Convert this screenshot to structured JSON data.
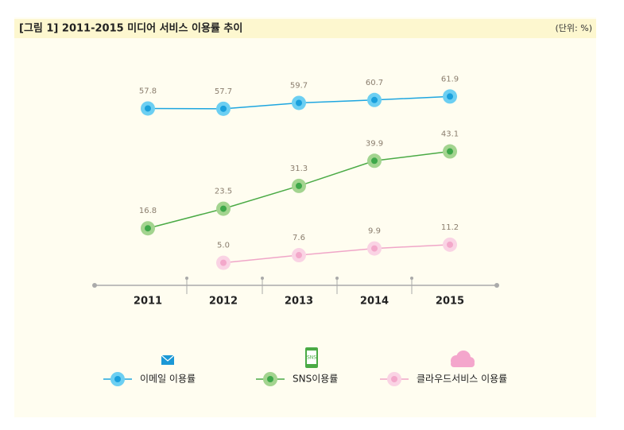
{
  "chart_data": {
    "type": "line",
    "title": "[그림 1] 2011-2015 미디어 서비스 이용률 추이",
    "unit": "(단위: %)",
    "categories": [
      "2011",
      "2012",
      "2013",
      "2014",
      "2015"
    ],
    "ylim": [
      0,
      65
    ],
    "series": [
      {
        "name": "이메일 이용률",
        "color": "#1ea6e0",
        "values": [
          57.8,
          57.7,
          59.7,
          60.7,
          61.9
        ]
      },
      {
        "name": "SNS이용률",
        "color": "#4aaa45",
        "values": [
          16.8,
          23.5,
          31.3,
          39.9,
          43.1
        ]
      },
      {
        "name": "클라우드서비스 이용률",
        "color": "#f0a6c8",
        "values": [
          null,
          5.0,
          7.6,
          9.9,
          11.2
        ],
        "value_labels": [
          null,
          "5.0",
          "7.6",
          "9.9",
          "11.2"
        ]
      }
    ]
  }
}
